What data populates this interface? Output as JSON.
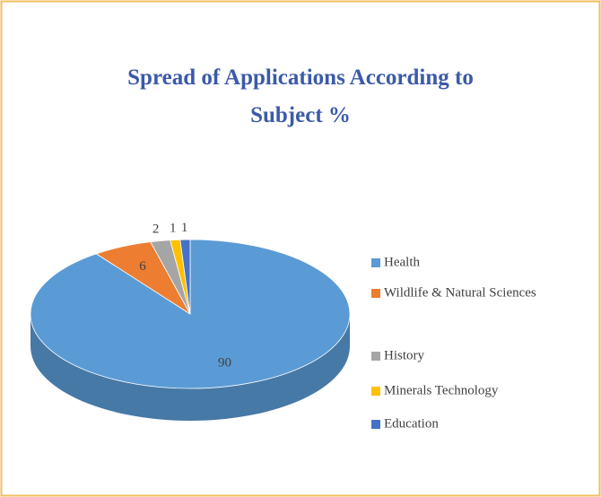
{
  "chart_data": {
    "type": "pie3d",
    "title": "Spread of Applications According to Subject %",
    "categories": [
      "Health",
      "Wildlife & Natural Sciences",
      "History",
      "Minerals Technology",
      "Education"
    ],
    "values": [
      90,
      6,
      2,
      1,
      1
    ],
    "colors": [
      "#5b9bd5",
      "#ed7d31",
      "#a5a5a5",
      "#ffc000",
      "#4472c4"
    ],
    "legend": "right"
  }
}
